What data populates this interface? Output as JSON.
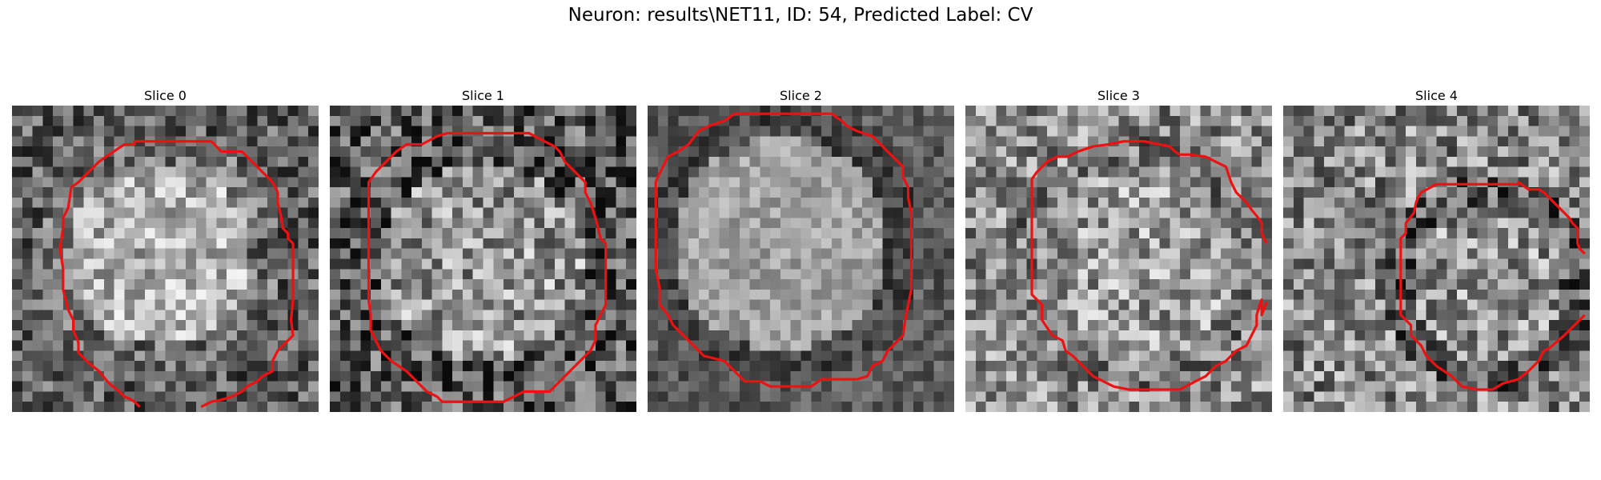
{
  "figure": {
    "title": "Neuron: results\\NET11, ID: 54, Predicted Label: CV",
    "contour_color": "#ee1111",
    "colormap": "gray"
  },
  "panels": [
    {
      "title": "Slice 0",
      "texture": "noisy bright blob, dark surround"
    },
    {
      "title": "Slice 1",
      "texture": "noisy blob with dark streaks"
    },
    {
      "title": "Slice 2",
      "texture": "smooth bright blob, dark rim"
    },
    {
      "title": "Slice 3",
      "texture": "noisy medium gray"
    },
    {
      "title": "Slice 4",
      "texture": "noisy medium gray, dark spots"
    }
  ]
}
